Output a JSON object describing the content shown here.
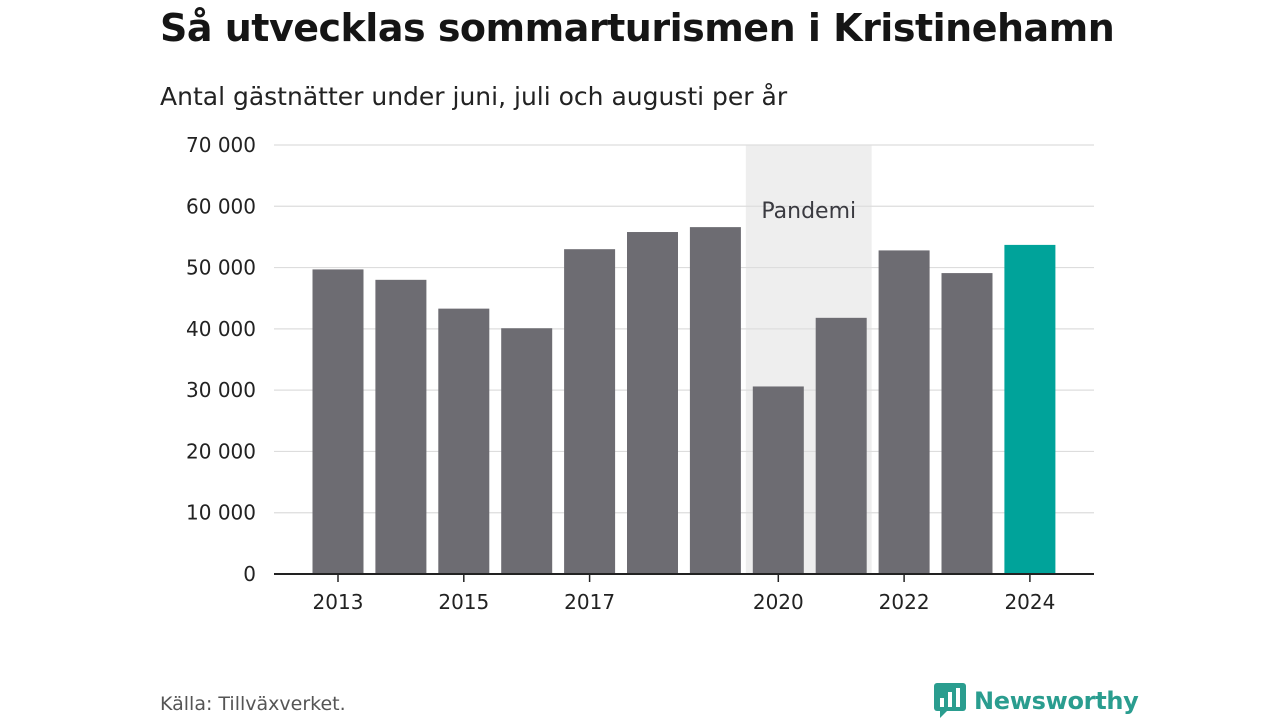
{
  "header": {
    "title": "Så utvecklas sommarturismen i Kristinehamn",
    "subtitle": "Antal gästnätter under juni, juli och augusti per år"
  },
  "chart_data": {
    "type": "bar",
    "categories": [
      "2013",
      "2014",
      "2015",
      "2016",
      "2017",
      "2018",
      "2019",
      "2020",
      "2021",
      "2022",
      "2023",
      "2024"
    ],
    "values": [
      49700,
      48000,
      43300,
      40100,
      53000,
      55800,
      56600,
      30600,
      41800,
      52800,
      49100,
      53700
    ],
    "x_tick_labels": [
      "2013",
      "",
      "2015",
      "",
      "2017",
      "",
      "",
      "2020",
      "",
      "2022",
      "",
      "2024"
    ],
    "y_ticks": [
      0,
      10000,
      20000,
      30000,
      40000,
      50000,
      60000,
      70000
    ],
    "y_tick_labels": [
      "0",
      "10 000",
      "20 000",
      "30 000",
      "40 000",
      "50 000",
      "60 000",
      "70 000"
    ],
    "ylim": [
      0,
      70000
    ],
    "grid": true,
    "highlight_category": "2024",
    "colors": {
      "bar": "#6d6c72",
      "highlight": "#00a39a",
      "band": "#eeeeee",
      "grid": "#dddddd",
      "axis": "#222222"
    },
    "annotation": {
      "label": "Pandemi",
      "from": "2020",
      "to": "2021"
    }
  },
  "footer": {
    "source": "Källa: Tillväxverket.",
    "brand": "Newsworthy",
    "brand_icon": "newsworthy-logo-icon"
  }
}
